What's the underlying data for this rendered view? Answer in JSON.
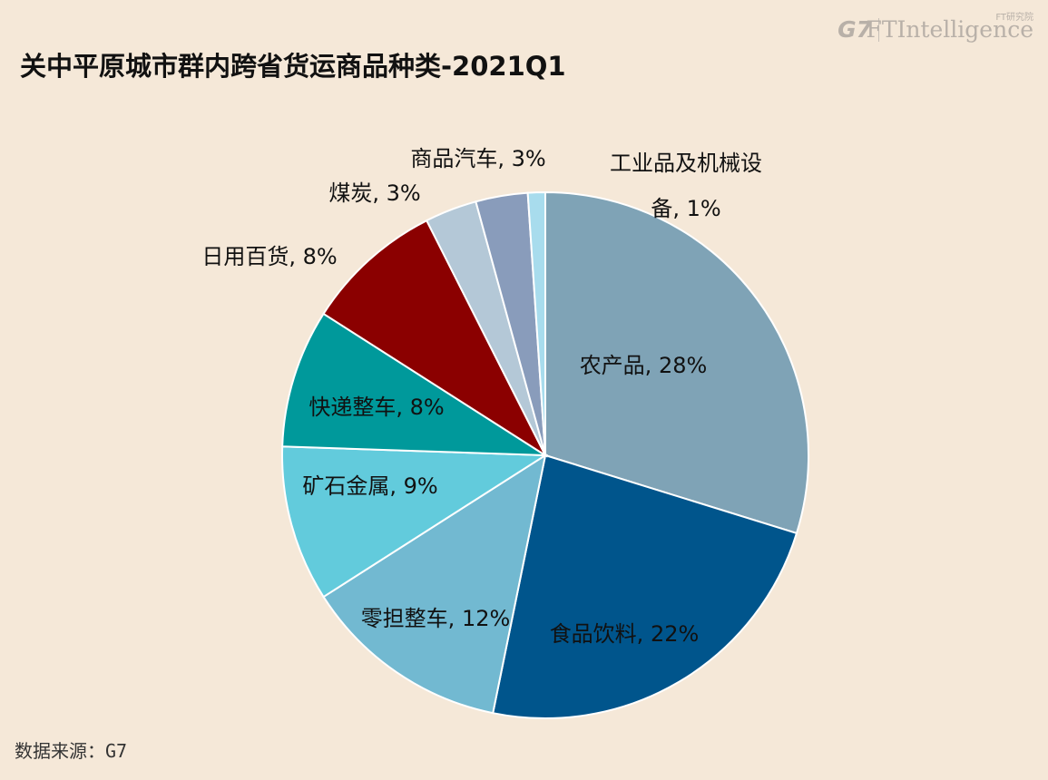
{
  "title": "关中平原城市群内跨省货运商品种类-2021Q1",
  "brand": {
    "g7": "G7",
    "ft": "FTIntelligence",
    "cn": "FT研究院"
  },
  "source": "数据来源：G7",
  "chart_data": {
    "type": "pie",
    "title": "关中平原城市群内跨省货运商品种类-2021Q1",
    "start": "12 o'clock, clockwise",
    "slices": [
      {
        "label": "农产品",
        "value": 28,
        "display": "农产品, 28%",
        "color": "#7fa3b6"
      },
      {
        "label": "食品饮料",
        "value": 22,
        "display": "食品饮料, 22%",
        "color": "#00558c"
      },
      {
        "label": "零担整车",
        "value": 12,
        "display": "零担整车, 12%",
        "color": "#72b9d1"
      },
      {
        "label": "矿石金属",
        "value": 9,
        "display": "矿石金属, 9%",
        "color": "#62cbdc"
      },
      {
        "label": "快递整车",
        "value": 8,
        "display": "快递整车, 8%",
        "color": "#00999b"
      },
      {
        "label": "日用百货",
        "value": 8,
        "display": "日用百货, 8%",
        "color": "#8b0000"
      },
      {
        "label": "煤炭",
        "value": 3,
        "display": "煤炭, 3%",
        "color": "#b4c8d7"
      },
      {
        "label": "商品汽车",
        "value": 3,
        "display": "商品汽车, 3%",
        "color": "#899cbb"
      },
      {
        "label": "工业品及机械设备",
        "value": 1,
        "display_lines": [
          "工业品及机械设",
          "备, 1%"
        ],
        "color": "#a8dced"
      }
    ],
    "_note_total": 94
  }
}
